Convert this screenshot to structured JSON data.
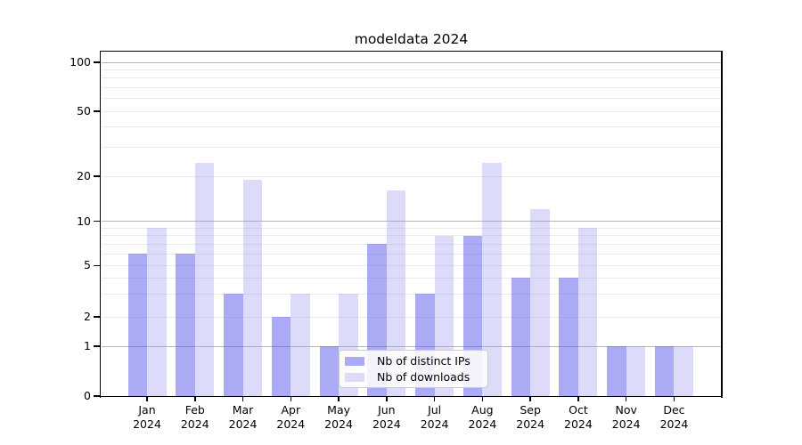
{
  "figure": {
    "background": "#ffffff"
  },
  "chart_data": {
    "type": "bar",
    "title": "modeldata 2024",
    "categories": [
      "Jan 2024",
      "Feb 2024",
      "Mar 2024",
      "Apr 2024",
      "May 2024",
      "Jun 2024",
      "Jul 2024",
      "Aug 2024",
      "Sep 2024",
      "Oct 2024",
      "Nov 2024",
      "Dec 2024"
    ],
    "x_months": [
      "Jan",
      "Feb",
      "Mar",
      "Apr",
      "May",
      "Jun",
      "Jul",
      "Aug",
      "Sep",
      "Oct",
      "Nov",
      "Dec"
    ],
    "x_year": "2024",
    "series": [
      {
        "name": "Nb of distinct IPs",
        "color": "#aaaaf5",
        "fill": "rgba(88,88,236,0.50)",
        "values": [
          6,
          6,
          3,
          2,
          1,
          7,
          3,
          8,
          4,
          4,
          1,
          1
        ]
      },
      {
        "name": "Nb of downloads",
        "color": "#dcdcfa",
        "fill": "rgba(151,151,240,0.34)",
        "values": [
          9,
          24,
          19,
          3,
          3,
          16,
          8,
          24,
          12,
          9,
          1,
          1
        ]
      }
    ],
    "y_axis": {
      "scale": "symlog",
      "ylim": [
        0,
        100
      ],
      "tick_values": [
        0,
        1,
        2,
        5,
        10,
        20,
        50,
        100
      ],
      "tick_labels": [
        "0",
        "1",
        "2",
        "5",
        "10",
        "20",
        "50",
        "100"
      ],
      "decade_gridlines": [
        1,
        10,
        100
      ],
      "minor_gridlines": [
        2,
        3,
        4,
        5,
        6,
        7,
        8,
        9,
        20,
        30,
        40,
        50,
        60,
        70,
        80,
        90
      ]
    },
    "xlabel": "",
    "ylabel": "",
    "grid": true,
    "legend": {
      "position": "lower center"
    }
  }
}
